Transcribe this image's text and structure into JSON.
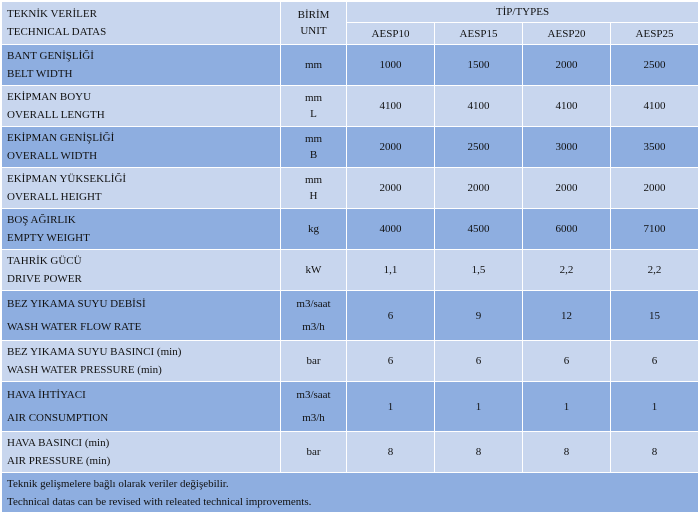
{
  "header": {
    "param_tr": "TEKNİK VERİLER",
    "param_en": "TECHNICAL DATAS",
    "unit_tr": "BİRİM",
    "unit_en": "UNIT",
    "types_label": "TİP/TYPES",
    "models": [
      "AESP10",
      "AESP15",
      "AESP20",
      "AESP25"
    ]
  },
  "rows": [
    {
      "tr": "BANT GENİŞLİĞİ",
      "en": "BELT WIDTH",
      "unit1": "mm",
      "unit2": "",
      "values": [
        "1000",
        "1500",
        "2000",
        "2500"
      ],
      "shade": "dark"
    },
    {
      "tr": "EKİPMAN BOYU",
      "en": "OVERALL LENGTH",
      "unit1": "mm",
      "unit2": "L",
      "values": [
        "4100",
        "4100",
        "4100",
        "4100"
      ],
      "shade": "light"
    },
    {
      "tr": "EKİPMAN GENİŞLİĞİ",
      "en": "OVERALL WIDTH",
      "unit1": "mm",
      "unit2": "B",
      "values": [
        "2000",
        "2500",
        "3000",
        "3500"
      ],
      "shade": "dark"
    },
    {
      "tr": "EKİPMAN YÜKSEKLİĞİ",
      "en": "OVERALL HEIGHT",
      "unit1": "mm",
      "unit2": "H",
      "values": [
        "2000",
        "2000",
        "2000",
        "2000"
      ],
      "shade": "light"
    },
    {
      "tr": "BOŞ AĞIRLIK",
      "en": "EMPTY WEIGHT",
      "unit1": "kg",
      "unit2": "",
      "values": [
        "4000",
        "4500",
        "6000",
        "7100"
      ],
      "shade": "dark"
    },
    {
      "tr": "TAHRİK GÜCÜ",
      "en": "DRIVE POWER",
      "unit1": "kW",
      "unit2": "",
      "values": [
        "1,1",
        "1,5",
        "2,2",
        "2,2"
      ],
      "shade": "light"
    },
    {
      "tr": "BEZ YIKAMA SUYU DEBİSİ",
      "en": "WASH WATER FLOW RATE",
      "unit1": "m3/saat",
      "unit2": "m3/h",
      "values": [
        "6",
        "9",
        "12",
        "15"
      ],
      "shade": "dark"
    },
    {
      "tr": "BEZ YIKAMA SUYU BASINCI (min)",
      "en": "WASH WATER PRESSURE   (min)",
      "unit1": "bar",
      "unit2": "",
      "values": [
        "6",
        "6",
        "6",
        "6"
      ],
      "shade": "light"
    },
    {
      "tr": "HAVA İHTİYACI",
      "en": "AIR CONSUMPTION",
      "unit1": "m3/saat",
      "unit2": "m3/h",
      "values": [
        "1",
        "1",
        "1",
        "1"
      ],
      "shade": "dark"
    },
    {
      "tr": "HAVA BASINCI    (min)",
      "en": "AIR PRESSURE    (min)",
      "unit1": "bar",
      "unit2": "",
      "values": [
        "8",
        "8",
        "8",
        "8"
      ],
      "shade": "light"
    }
  ],
  "footnote": {
    "tr": "Teknik gelişmelere bağlı olarak veriler değişebilir.",
    "en": "Technical datas can be revised with releated technical improvements."
  },
  "colors": {
    "light": "#c8d6ee",
    "dark": "#8eaee0",
    "border": "#ffffff"
  }
}
